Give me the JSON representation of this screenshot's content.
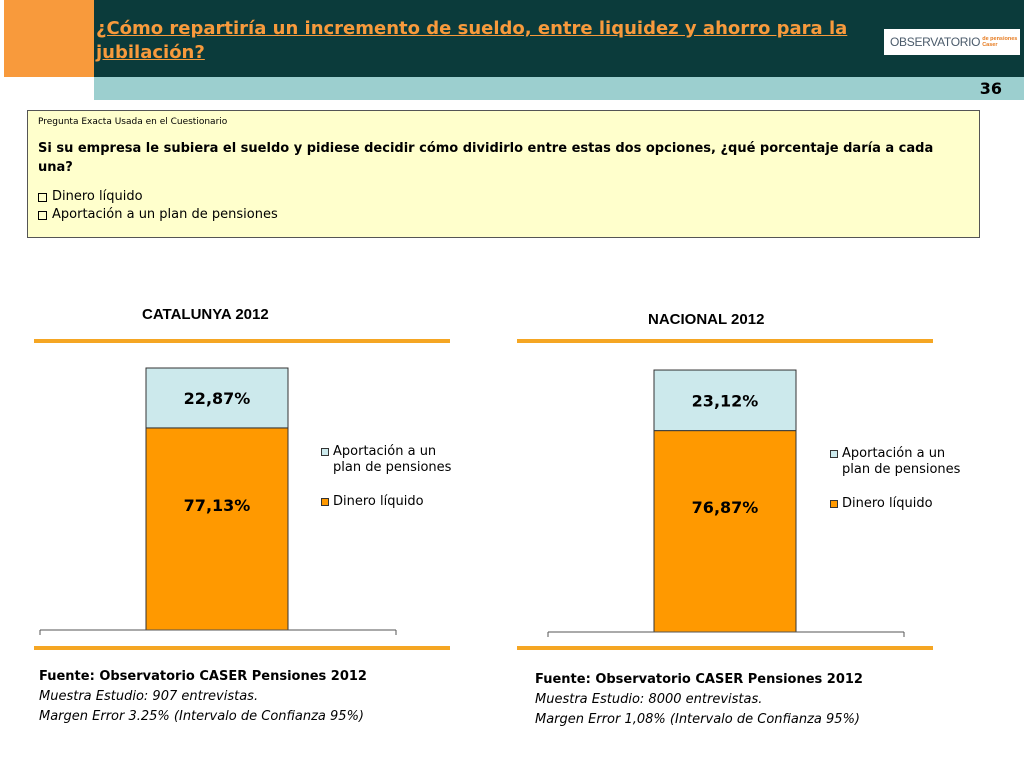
{
  "header": {
    "title": "¿Cómo repartiría un incremento de sueldo, entre liquidez y ahorro para la jubilación?",
    "logo_main": "OBSERVATORIO",
    "logo_sub_1": "de pensiones",
    "logo_sub_2": "Caser",
    "page_number": "36"
  },
  "question": {
    "caption": "Pregunta Exacta Usada en el Cuestionario",
    "text": "Si su empresa le subiera el sueldo y pidiese decidir cómo dividirlo entre estas dos opciones, ¿qué porcentaje daría a cada una?",
    "options": [
      "Dinero líquido",
      "Aportación a un plan de pensiones"
    ]
  },
  "colors": {
    "orange": "#ff9900",
    "light_blue": "#cce9ec",
    "rule": "#f5a623"
  },
  "chart_data": [
    {
      "type": "bar",
      "stacked": true,
      "title": "CATALUNYA 2012",
      "categories": [
        ""
      ],
      "ylim": [
        0,
        100
      ],
      "series": [
        {
          "name": "Dinero líquido",
          "values": [
            77.13
          ],
          "label": "77,13%",
          "color": "#ff9900"
        },
        {
          "name": "Aportación a un plan de pensiones",
          "values": [
            22.87
          ],
          "label": "22,87%",
          "color": "#cce9ec"
        }
      ],
      "legend": [
        "Aportación a un plan de pensiones",
        "Dinero líquido"
      ],
      "legend_position": "right",
      "source": {
        "title": "Fuente: Observatorio CASER Pensiones 2012",
        "sample": "Muestra Estudio: 907 entrevistas.",
        "margin": "Margen Error 3.25% (Intervalo de Confianza 95%)"
      }
    },
    {
      "type": "bar",
      "stacked": true,
      "title": "NACIONAL 2012",
      "categories": [
        ""
      ],
      "ylim": [
        0,
        100
      ],
      "series": [
        {
          "name": "Dinero líquido",
          "values": [
            76.87
          ],
          "label": "76,87%",
          "color": "#ff9900"
        },
        {
          "name": "Aportación a un plan de pensiones",
          "values": [
            23.12
          ],
          "label": "23,12%",
          "color": "#cce9ec"
        }
      ],
      "legend": [
        "Aportación a un plan de pensiones",
        "Dinero líquido"
      ],
      "legend_position": "right",
      "source": {
        "title": "Fuente: Observatorio CASER Pensiones 2012",
        "sample": "Muestra Estudio: 8000 entrevistas.",
        "margin": "Margen Error 1,08% (Intervalo de Confianza 95%)"
      }
    }
  ]
}
